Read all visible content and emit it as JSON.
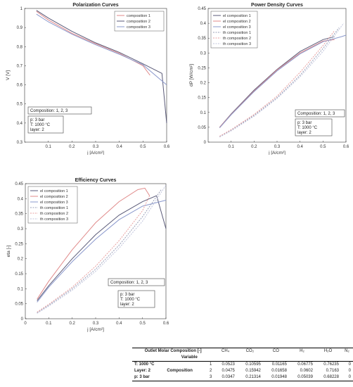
{
  "chart_data": [
    {
      "id": "pol",
      "type": "line",
      "title": "Polarization Curves",
      "xlabel": "j [A/cm²]",
      "ylabel": "V [V]",
      "xlim": [
        0.0,
        0.6
      ],
      "ylim": [
        0.3,
        1.0
      ],
      "xticks": [
        "0.1",
        "0.2",
        "0.3",
        "0.4",
        "0.5",
        "0.6"
      ],
      "xtick_values": [
        0.1,
        0.2,
        0.3,
        0.4,
        0.5,
        0.6
      ],
      "yticks": [
        "0.3",
        "0.4",
        "0.5",
        "0.6",
        "0.7",
        "0.8",
        "0.9",
        "1"
      ],
      "ytick_values": [
        0.3,
        0.4,
        0.5,
        0.6,
        0.7,
        0.8,
        0.9,
        1.0
      ],
      "legend_position": "top-right",
      "series": [
        {
          "name": "composition 1",
          "color": "#e08a8a",
          "dash": false,
          "x": [
            0.05,
            0.1,
            0.2,
            0.3,
            0.4,
            0.5,
            0.53
          ],
          "y": [
            0.985,
            0.94,
            0.87,
            0.815,
            0.765,
            0.7,
            0.65
          ]
        },
        {
          "name": "composition 2",
          "color": "#5a5a78",
          "dash": false,
          "x": [
            0.05,
            0.1,
            0.2,
            0.3,
            0.4,
            0.5,
            0.58,
            0.6
          ],
          "y": [
            0.99,
            0.95,
            0.88,
            0.82,
            0.77,
            0.71,
            0.66,
            0.4
          ]
        },
        {
          "name": "composition 3",
          "color": "#8a98cc",
          "dash": false,
          "x": [
            0.05,
            0.1,
            0.2,
            0.3,
            0.4,
            0.5,
            0.6
          ],
          "y": [
            0.97,
            0.93,
            0.865,
            0.81,
            0.76,
            0.705,
            0.6
          ]
        }
      ],
      "box1": {
        "lines": [
          "Composition: 1, 2, 3"
        ]
      },
      "box2": {
        "lines": [
          "p: 3 bar",
          "T: 1000 °C",
          "layer: 2"
        ]
      }
    },
    {
      "id": "pow",
      "type": "line",
      "title": "Power Density Curves",
      "xlabel": "j [A/cm²]",
      "ylabel": "dP [W/cm²]",
      "xlim": [
        0.0,
        0.6
      ],
      "ylim": [
        0.0,
        0.45
      ],
      "xticks": [
        "0.1",
        "0.2",
        "0.3",
        "0.4",
        "0.5",
        "0.6"
      ],
      "xtick_values": [
        0.1,
        0.2,
        0.3,
        0.4,
        0.5,
        0.6
      ],
      "yticks": [
        "0",
        "0.05",
        "0.1",
        "0.15",
        "0.2",
        "0.25",
        "0.3",
        "0.35",
        "0.4",
        "0.45"
      ],
      "ytick_values": [
        0,
        0.05,
        0.1,
        0.15,
        0.2,
        0.25,
        0.3,
        0.35,
        0.4,
        0.45
      ],
      "legend_position": "top-left",
      "series": [
        {
          "name": "el composition 1",
          "color": "#5a5a78",
          "dash": false,
          "x": [
            0.05,
            0.1,
            0.2,
            0.3,
            0.4,
            0.5,
            0.55
          ],
          "y": [
            0.05,
            0.095,
            0.175,
            0.245,
            0.305,
            0.345,
            0.355
          ]
        },
        {
          "name": "el composition 2",
          "color": "#e08a8a",
          "dash": false,
          "x": [
            0.05,
            0.1,
            0.2,
            0.3,
            0.4,
            0.5,
            0.55
          ],
          "y": [
            0.05,
            0.093,
            0.172,
            0.243,
            0.3,
            0.34,
            0.345
          ]
        },
        {
          "name": "el composition 3",
          "color": "#8a98cc",
          "dash": false,
          "x": [
            0.05,
            0.1,
            0.2,
            0.3,
            0.4,
            0.5,
            0.58,
            0.6
          ],
          "y": [
            0.048,
            0.092,
            0.17,
            0.24,
            0.297,
            0.338,
            0.355,
            0.36
          ]
        },
        {
          "name": "th composition 1",
          "color": "#9aa0b8",
          "dash": true,
          "x": [
            0.05,
            0.1,
            0.2,
            0.3,
            0.4,
            0.5,
            0.57
          ],
          "y": [
            0.018,
            0.04,
            0.09,
            0.15,
            0.225,
            0.315,
            0.385
          ]
        },
        {
          "name": "th composition 2",
          "color": "#e8a0a0",
          "dash": true,
          "x": [
            0.05,
            0.1,
            0.2,
            0.3,
            0.4,
            0.5,
            0.55
          ],
          "y": [
            0.02,
            0.042,
            0.093,
            0.155,
            0.235,
            0.325,
            0.375
          ]
        },
        {
          "name": "th composition 3",
          "color": "#c0c4dc",
          "dash": true,
          "x": [
            0.05,
            0.1,
            0.2,
            0.3,
            0.4,
            0.5,
            0.59
          ],
          "y": [
            0.017,
            0.038,
            0.087,
            0.147,
            0.22,
            0.305,
            0.4
          ]
        }
      ],
      "box1": {
        "lines": [
          "Composition: 1, 2, 3"
        ]
      },
      "box2": {
        "lines": [
          "p: 3 bar",
          "T: 1000 °C",
          "layer: 2"
        ]
      }
    },
    {
      "id": "eff",
      "type": "line",
      "title": "Efficiency Curves",
      "xlabel": "j [A/cm²]",
      "ylabel": "eta [-]",
      "xlim": [
        0.0,
        0.6
      ],
      "ylim": [
        0.0,
        0.45
      ],
      "xticks": [
        "0",
        "0.1",
        "0.2",
        "0.3",
        "0.4",
        "0.5",
        "0.6"
      ],
      "xtick_values": [
        0,
        0.1,
        0.2,
        0.3,
        0.4,
        0.5,
        0.6
      ],
      "yticks": [
        "0",
        "0.05",
        "0.1",
        "0.15",
        "0.2",
        "0.25",
        "0.3",
        "0.35",
        "0.4",
        "0.45"
      ],
      "ytick_values": [
        0,
        0.05,
        0.1,
        0.15,
        0.2,
        0.25,
        0.3,
        0.35,
        0.4,
        0.45
      ],
      "legend_position": "top-left",
      "series": [
        {
          "name": "el composition 1",
          "color": "#5a5a78",
          "dash": false,
          "x": [
            0.05,
            0.1,
            0.2,
            0.3,
            0.4,
            0.5,
            0.56,
            0.6
          ],
          "y": [
            0.06,
            0.11,
            0.2,
            0.28,
            0.345,
            0.39,
            0.41,
            0.3
          ]
        },
        {
          "name": "el composition 2",
          "color": "#e08a8a",
          "dash": false,
          "x": [
            0.05,
            0.1,
            0.2,
            0.3,
            0.4,
            0.48,
            0.51,
            0.53
          ],
          "y": [
            0.065,
            0.125,
            0.23,
            0.32,
            0.39,
            0.43,
            0.435,
            0.41
          ]
        },
        {
          "name": "el composition 3",
          "color": "#8a98cc",
          "dash": false,
          "x": [
            0.05,
            0.1,
            0.2,
            0.3,
            0.4,
            0.5,
            0.6
          ],
          "y": [
            0.055,
            0.105,
            0.19,
            0.265,
            0.33,
            0.375,
            0.395
          ]
        },
        {
          "name": "th composition 1",
          "color": "#9aa0b8",
          "dash": true,
          "x": [
            0.05,
            0.1,
            0.2,
            0.3,
            0.4,
            0.5,
            0.58
          ],
          "y": [
            0.02,
            0.045,
            0.1,
            0.165,
            0.245,
            0.34,
            0.43
          ]
        },
        {
          "name": "th composition 2",
          "color": "#e8a0a0",
          "dash": true,
          "x": [
            0.05,
            0.1,
            0.2,
            0.3,
            0.4,
            0.5,
            0.53
          ],
          "y": [
            0.022,
            0.048,
            0.105,
            0.175,
            0.26,
            0.36,
            0.41
          ]
        },
        {
          "name": "th composition 3",
          "color": "#c0c4dc",
          "dash": true,
          "x": [
            0.05,
            0.1,
            0.2,
            0.3,
            0.4,
            0.5,
            0.6
          ],
          "y": [
            0.018,
            0.042,
            0.095,
            0.158,
            0.235,
            0.325,
            0.445
          ]
        }
      ],
      "box1": {
        "lines": [
          "Composition: 1, 2, 3"
        ]
      },
      "box2": {
        "lines": [
          "p: 3 bar",
          "T: 1000 °C",
          "layer: 2"
        ]
      }
    }
  ],
  "table": {
    "title": "Outlet Molar Composition [-]",
    "variable_header": "Variable",
    "columns": [
      "CH₄",
      "CO₂",
      "CO",
      "H₂",
      "H₂O",
      "N₂"
    ],
    "row_labels": [
      "T: 1000 °C",
      "Layer: 2",
      "p: 3 bar"
    ],
    "group_label": "Composition",
    "rows": [
      {
        "id": "1",
        "values": [
          "0.0523",
          "0.10595",
          "0.01165",
          "0.06775",
          "0.76235",
          "0"
        ]
      },
      {
        "id": "2",
        "values": [
          "0.0475",
          "0.15942",
          "0.01658",
          "0.0602",
          "0.7163",
          "0"
        ]
      },
      {
        "id": "3",
        "values": [
          "0.0347",
          "0.21314",
          "0.01948",
          "0.05039",
          "0.68228",
          "0"
        ]
      }
    ]
  }
}
